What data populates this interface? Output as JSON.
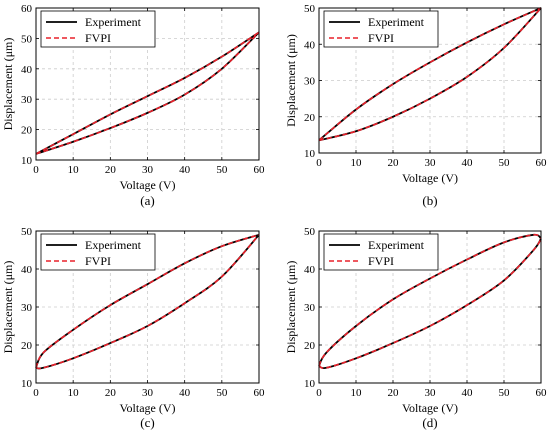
{
  "chart_data": [
    {
      "type": "line",
      "panel_label": "(a)",
      "xlabel": "Voltage (V)",
      "ylabel": "Displacement (μm)",
      "xlim": [
        0,
        60
      ],
      "ylim": [
        10,
        60
      ],
      "xticks": [
        0,
        10,
        20,
        30,
        40,
        50,
        60
      ],
      "yticks": [
        10,
        20,
        30,
        40,
        50,
        60
      ],
      "grid": true,
      "legend_position": "top-left",
      "series": [
        {
          "name": "Experiment",
          "color": "#000000",
          "style": "solid",
          "upper": {
            "x": [
              0,
              10,
              20,
              30,
              40,
              50,
              60
            ],
            "y": [
              12,
              18.5,
              25,
              31,
              37,
              44,
              52
            ]
          },
          "lower": {
            "x": [
              0,
              10,
              20,
              30,
              40,
              50,
              60
            ],
            "y": [
              12,
              16,
              20.5,
              25.5,
              31.5,
              40,
              52
            ]
          }
        },
        {
          "name": "FVPI",
          "color": "#e8202a",
          "style": "dashed",
          "upper": {
            "x": [
              0,
              10,
              20,
              30,
              40,
              50,
              60
            ],
            "y": [
              12,
              18.5,
              25,
              31,
              37,
              44,
              52
            ]
          },
          "lower": {
            "x": [
              0,
              10,
              20,
              30,
              40,
              50,
              60
            ],
            "y": [
              12,
              16,
              20.5,
              25.5,
              31.5,
              40,
              52
            ]
          }
        }
      ]
    },
    {
      "type": "line",
      "panel_label": "(b)",
      "xlabel": "Voltage (V)",
      "ylabel": "Displacement (μm)",
      "xlim": [
        0,
        60
      ],
      "ylim": [
        10,
        50
      ],
      "xticks": [
        0,
        10,
        20,
        30,
        40,
        50,
        60
      ],
      "yticks": [
        10,
        20,
        30,
        40,
        50
      ],
      "grid": true,
      "legend_position": "top-left",
      "series": [
        {
          "name": "Experiment",
          "color": "#000000",
          "style": "solid",
          "upper": {
            "x": [
              0,
              10,
              20,
              30,
              40,
              50,
              60
            ],
            "y": [
              13.5,
              22,
              29,
              35,
              40.5,
              45.5,
              50
            ]
          },
          "lower": {
            "x": [
              0,
              10,
              20,
              30,
              40,
              50,
              60
            ],
            "y": [
              13.5,
              16,
              20,
              25,
              31,
              39,
              50
            ]
          }
        },
        {
          "name": "FVPI",
          "color": "#e8202a",
          "style": "dashed",
          "upper": {
            "x": [
              0,
              10,
              20,
              30,
              40,
              50,
              60
            ],
            "y": [
              13.5,
              22,
              29,
              35,
              40.5,
              45.5,
              50
            ]
          },
          "lower": {
            "x": [
              0,
              10,
              20,
              30,
              40,
              50,
              60
            ],
            "y": [
              13.5,
              16,
              20,
              25,
              31,
              39,
              50
            ]
          }
        }
      ]
    },
    {
      "type": "line",
      "panel_label": "(c)",
      "xlabel": "Voltage (V)",
      "ylabel": "Displacement (μm)",
      "xlim": [
        0,
        60
      ],
      "ylim": [
        10,
        50
      ],
      "xticks": [
        0,
        10,
        20,
        30,
        40,
        50,
        60
      ],
      "yticks": [
        10,
        20,
        30,
        40,
        50
      ],
      "grid": true,
      "legend_position": "top-left",
      "series": [
        {
          "name": "Experiment",
          "color": "#000000",
          "style": "solid",
          "upper": {
            "x": [
              0,
              2,
              10,
              20,
              30,
              40,
              50,
              60
            ],
            "y": [
              14,
              18,
              24,
              30.5,
              36,
              41.5,
              46,
              49
            ]
          },
          "lower": {
            "x": [
              0,
              2,
              10,
              20,
              30,
              40,
              50,
              60
            ],
            "y": [
              14,
              14,
              16.5,
              20.5,
              25,
              31,
              38,
              49
            ]
          }
        },
        {
          "name": "FVPI",
          "color": "#e8202a",
          "style": "dashed",
          "upper": {
            "x": [
              0,
              2,
              10,
              20,
              30,
              40,
              50,
              60
            ],
            "y": [
              14,
              18,
              24,
              30.5,
              36,
              41.5,
              46,
              49
            ]
          },
          "lower": {
            "x": [
              0,
              2,
              10,
              20,
              30,
              40,
              50,
              60
            ],
            "y": [
              14,
              14,
              16.5,
              20.5,
              25,
              31,
              38,
              49
            ]
          }
        }
      ]
    },
    {
      "type": "line",
      "panel_label": "(d)",
      "xlabel": "Voltage (V)",
      "ylabel": "Displacement (μm)",
      "xlim": [
        0,
        60
      ],
      "ylim": [
        10,
        50
      ],
      "xticks": [
        0,
        10,
        20,
        30,
        40,
        50,
        60
      ],
      "yticks": [
        10,
        20,
        30,
        40,
        50
      ],
      "grid": true,
      "legend_position": "top-left",
      "series": [
        {
          "name": "Experiment",
          "color": "#000000",
          "style": "solid",
          "upper": {
            "x": [
              0,
              2,
              10,
              20,
              30,
              40,
              50,
              58,
              60
            ],
            "y": [
              14.5,
              18,
              25,
              32,
              37.5,
              42.5,
              47,
              49,
              48
            ]
          },
          "lower": {
            "x": [
              0,
              2,
              10,
              20,
              30,
              40,
              50,
              58,
              60
            ],
            "y": [
              14.5,
              14,
              16.5,
              20.5,
              25,
              30.5,
              37,
              45,
              48
            ]
          }
        },
        {
          "name": "FVPI",
          "color": "#e8202a",
          "style": "dashed",
          "upper": {
            "x": [
              0,
              2,
              10,
              20,
              30,
              40,
              50,
              58,
              60
            ],
            "y": [
              14.5,
              18,
              25,
              32,
              37.5,
              42.5,
              47,
              49,
              48
            ]
          },
          "lower": {
            "x": [
              0,
              2,
              10,
              20,
              30,
              40,
              50,
              58,
              60
            ],
            "y": [
              14.5,
              14,
              16.5,
              20.5,
              25,
              30.5,
              37,
              45,
              48
            ]
          }
        }
      ]
    }
  ]
}
